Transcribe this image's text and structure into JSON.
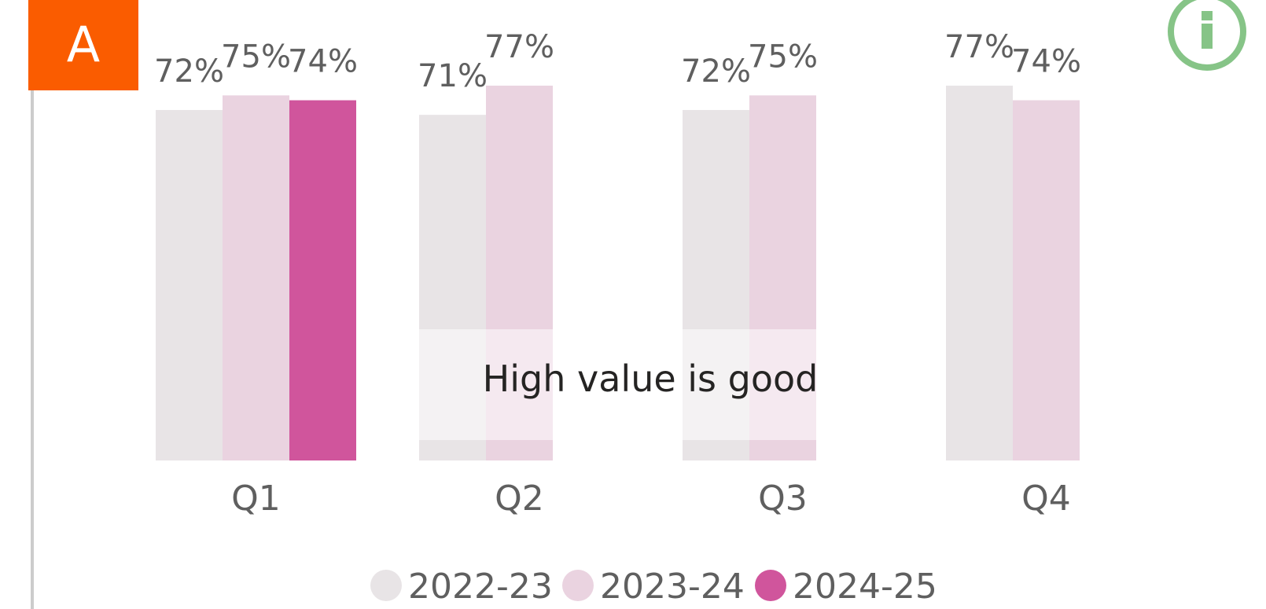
{
  "badge": "A",
  "chart_data": {
    "type": "bar",
    "categories": [
      "Q1",
      "Q2",
      "Q3",
      "Q4"
    ],
    "series": [
      {
        "name": "2022-23",
        "color": "#e8e4e6",
        "values": [
          72,
          71,
          72,
          77
        ],
        "value_labels": [
          "72%",
          "71%",
          "72%",
          "77%"
        ]
      },
      {
        "name": "2023-24",
        "color": "#ead3e0",
        "values": [
          75,
          77,
          75,
          74
        ],
        "value_labels": [
          "75%",
          "77%",
          "75%",
          "74%"
        ]
      },
      {
        "name": "2024-25",
        "color": "#d0559c",
        "values": [
          74,
          null,
          null,
          null
        ],
        "value_labels": [
          "74%",
          null,
          null,
          null
        ]
      }
    ],
    "ylim": [
      0,
      77
    ],
    "annotation": "High value is good",
    "legend": "bottom"
  }
}
